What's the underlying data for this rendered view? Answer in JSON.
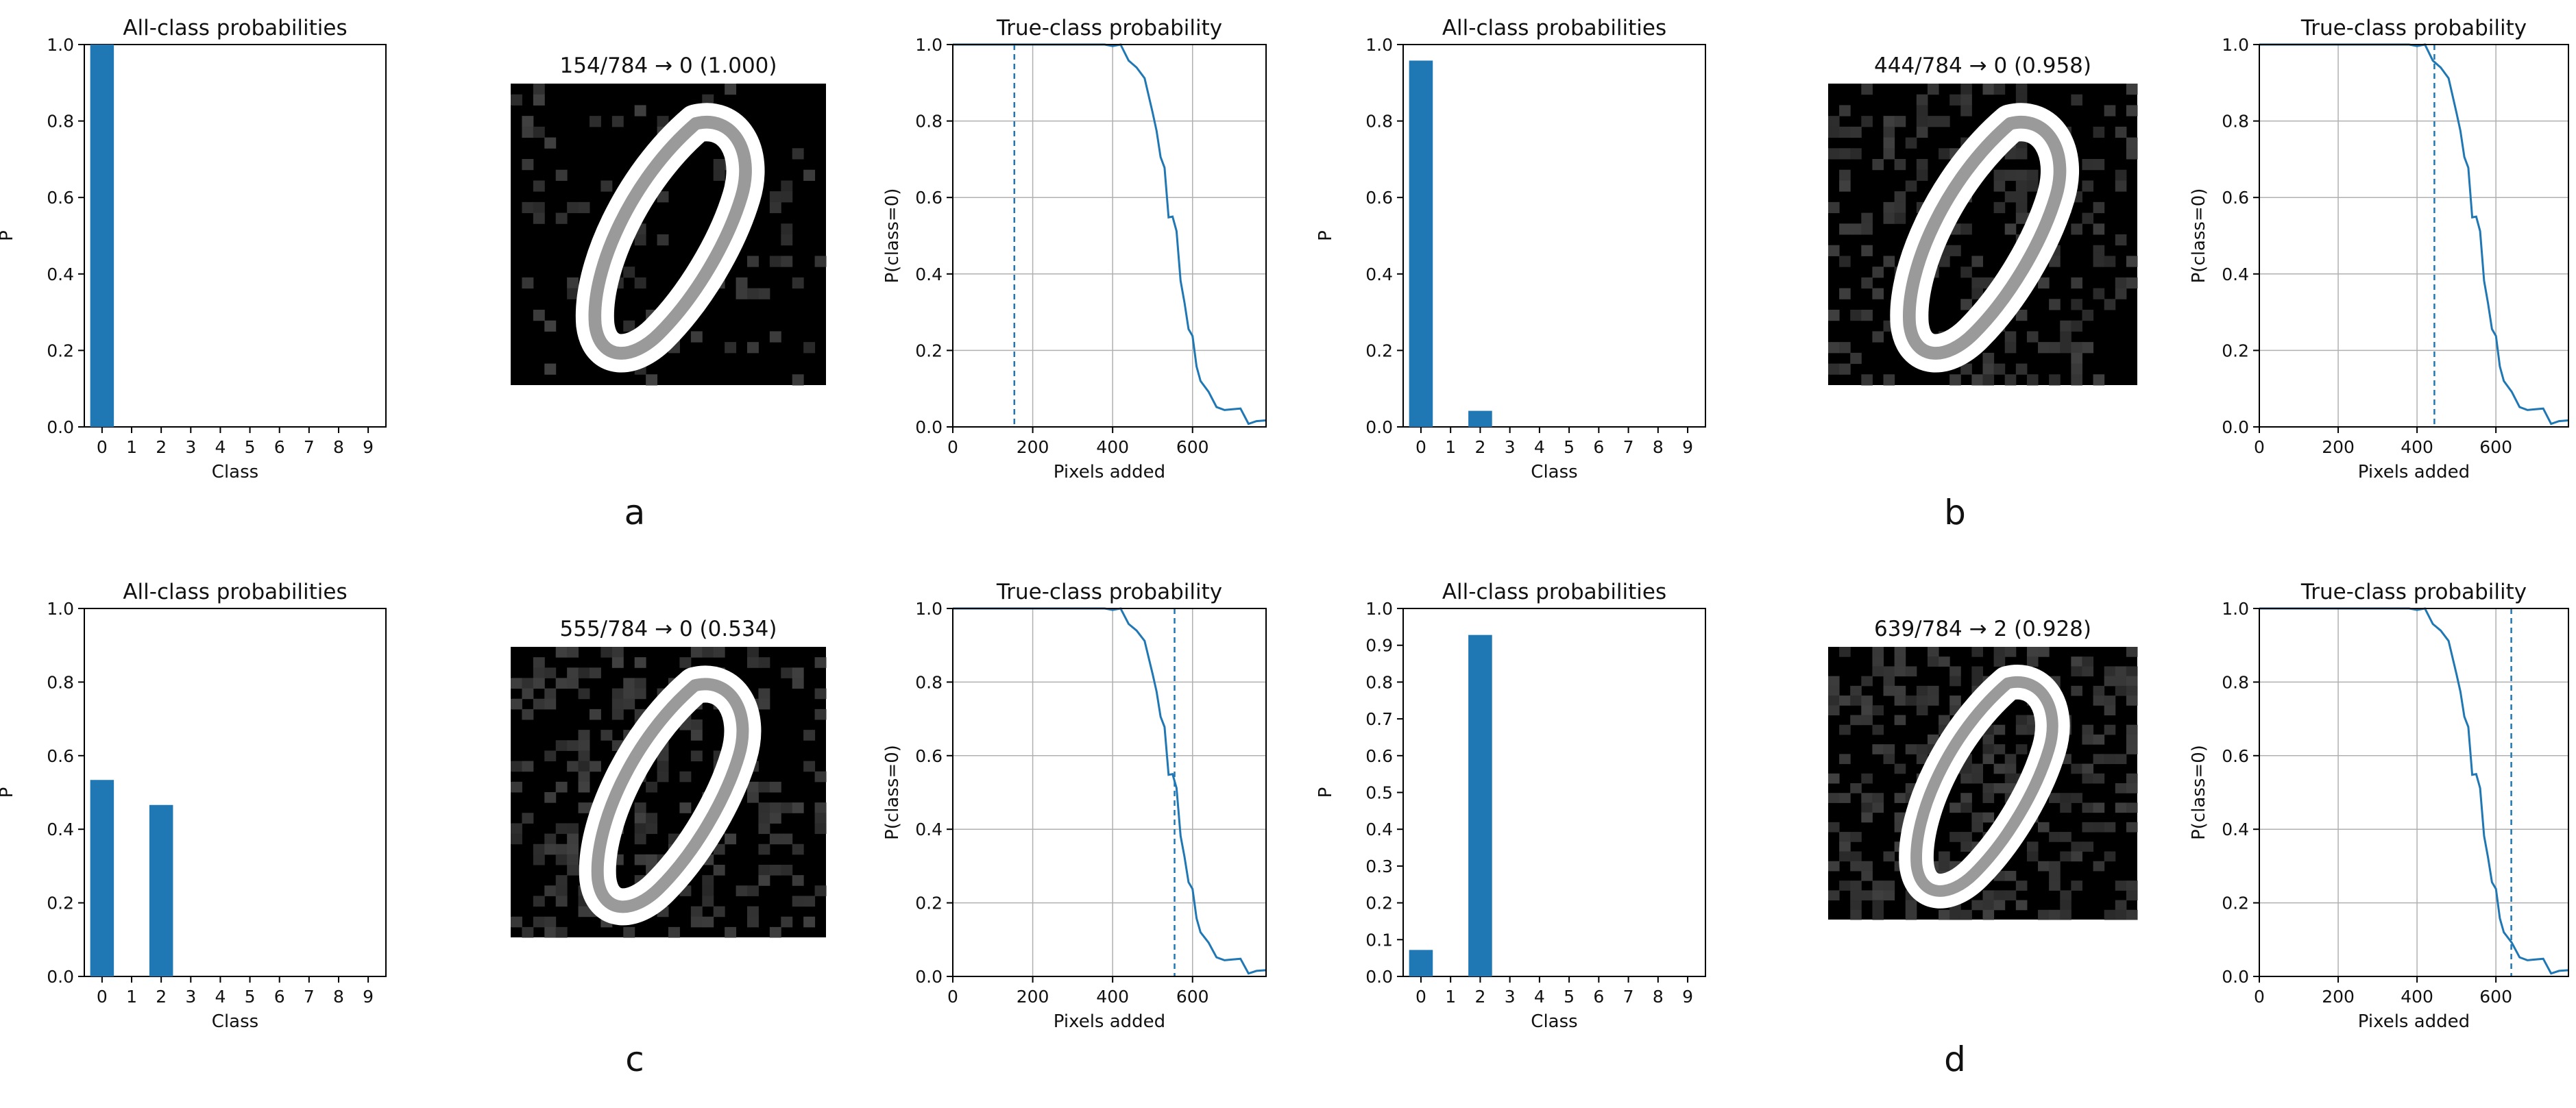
{
  "panel_letters": [
    "a",
    "b",
    "c",
    "d"
  ],
  "colors": {
    "bar": "#1f77b4",
    "line": "#1f77b4",
    "grid": "#b0b0b0",
    "axis": "#000000"
  },
  "chart_data": [
    {
      "panel": "a",
      "bars": {
        "type": "bar",
        "title": "All-class probabilities",
        "xlabel": "Class",
        "ylabel": "P",
        "categories": [
          "0",
          "1",
          "2",
          "3",
          "4",
          "5",
          "6",
          "7",
          "8",
          "9"
        ],
        "values": [
          1.0,
          0,
          0,
          0,
          0,
          0,
          0,
          0,
          0,
          0
        ],
        "ylim": [
          0,
          1
        ],
        "yticks": [
          "0.0",
          "0.2",
          "0.4",
          "0.6",
          "0.8",
          "1.0"
        ],
        "grid": false
      },
      "image": {
        "title": "154/784 → 0 (1.000)",
        "pixels_added": 154,
        "total_pixels": 784,
        "predicted_class": "0",
        "confidence": "1.000"
      },
      "curve": {
        "type": "line",
        "title": "True-class probability",
        "xlabel": "Pixels added",
        "ylabel": "P(class=0)",
        "xlim": [
          0,
          784
        ],
        "ylim": [
          0,
          1
        ],
        "xticks": [
          "0",
          "200",
          "400",
          "600"
        ],
        "yticks": [
          "0.0",
          "0.2",
          "0.4",
          "0.6",
          "0.8",
          "1.0"
        ],
        "marker_x": 154,
        "grid": true
      }
    },
    {
      "panel": "b",
      "bars": {
        "type": "bar",
        "title": "All-class probabilities",
        "xlabel": "Class",
        "ylabel": "P",
        "categories": [
          "0",
          "1",
          "2",
          "3",
          "4",
          "5",
          "6",
          "7",
          "8",
          "9"
        ],
        "values": [
          0.958,
          0,
          0.042,
          0,
          0,
          0,
          0,
          0,
          0,
          0
        ],
        "ylim": [
          0,
          1
        ],
        "yticks": [
          "0.0",
          "0.2",
          "0.4",
          "0.6",
          "0.8",
          "1.0"
        ],
        "grid": false
      },
      "image": {
        "title": "444/784 → 0 (0.958)",
        "pixels_added": 444,
        "total_pixels": 784,
        "predicted_class": "0",
        "confidence": "0.958"
      },
      "curve": {
        "type": "line",
        "title": "True-class probability",
        "xlabel": "Pixels added",
        "ylabel": "P(class=0)",
        "xlim": [
          0,
          784
        ],
        "ylim": [
          0,
          1
        ],
        "xticks": [
          "0",
          "200",
          "400",
          "600"
        ],
        "yticks": [
          "0.0",
          "0.2",
          "0.4",
          "0.6",
          "0.8",
          "1.0"
        ],
        "marker_x": 444,
        "grid": true
      }
    },
    {
      "panel": "c",
      "bars": {
        "type": "bar",
        "title": "All-class probabilities",
        "xlabel": "Class",
        "ylabel": "P",
        "categories": [
          "0",
          "1",
          "2",
          "3",
          "4",
          "5",
          "6",
          "7",
          "8",
          "9"
        ],
        "values": [
          0.534,
          0,
          0.466,
          0,
          0,
          0,
          0,
          0,
          0,
          0
        ],
        "ylim": [
          0,
          1
        ],
        "yticks": [
          "0.0",
          "0.2",
          "0.4",
          "0.6",
          "0.8",
          "1.0"
        ],
        "grid": false
      },
      "image": {
        "title": "555/784 → 0 (0.534)",
        "pixels_added": 555,
        "total_pixels": 784,
        "predicted_class": "0",
        "confidence": "0.534"
      },
      "curve": {
        "type": "line",
        "title": "True-class probability",
        "xlabel": "Pixels added",
        "ylabel": "P(class=0)",
        "xlim": [
          0,
          784
        ],
        "ylim": [
          0,
          1
        ],
        "xticks": [
          "0",
          "200",
          "400",
          "600"
        ],
        "yticks": [
          "0.0",
          "0.2",
          "0.4",
          "0.6",
          "0.8",
          "1.0"
        ],
        "marker_x": 555,
        "grid": true
      }
    },
    {
      "panel": "d",
      "bars": {
        "type": "bar",
        "title": "All-class probabilities",
        "xlabel": "Class",
        "ylabel": "P",
        "categories": [
          "0",
          "1",
          "2",
          "3",
          "4",
          "5",
          "6",
          "7",
          "8",
          "9"
        ],
        "values": [
          0.072,
          0,
          0.928,
          0,
          0,
          0,
          0,
          0,
          0,
          0
        ],
        "ylim": [
          0,
          1
        ],
        "yticks": [
          "0.0",
          "0.1",
          "0.2",
          "0.3",
          "0.4",
          "0.5",
          "0.6",
          "0.7",
          "0.8",
          "0.9",
          "1.0"
        ],
        "grid": false
      },
      "image": {
        "title": "639/784 → 2 (0.928)",
        "pixels_added": 639,
        "total_pixels": 784,
        "predicted_class": "2",
        "confidence": "0.928"
      },
      "curve": {
        "type": "line",
        "title": "True-class probability",
        "xlabel": "Pixels added",
        "ylabel": "P(class=0)",
        "xlim": [
          0,
          784
        ],
        "ylim": [
          0,
          1
        ],
        "xticks": [
          "0",
          "200",
          "400",
          "600"
        ],
        "yticks": [
          "0.0",
          "0.2",
          "0.4",
          "0.6",
          "0.8",
          "1.0"
        ],
        "marker_x": 639,
        "grid": true
      }
    }
  ],
  "true_class_curve": {
    "x": [
      0,
      50,
      100,
      150,
      200,
      250,
      300,
      350,
      380,
      400,
      420,
      440,
      460,
      480,
      500,
      510,
      520,
      530,
      540,
      550,
      560,
      570,
      580,
      590,
      600,
      610,
      620,
      640,
      660,
      680,
      700,
      720,
      740,
      760,
      784
    ],
    "y": [
      1.0,
      1.0,
      1.0,
      1.0,
      1.0,
      1.0,
      1.0,
      1.0,
      1.0,
      0.99,
      0.985,
      0.97,
      0.94,
      0.9,
      0.84,
      0.78,
      0.7,
      0.66,
      0.56,
      0.55,
      0.5,
      0.4,
      0.33,
      0.25,
      0.22,
      0.17,
      0.12,
      0.08,
      0.07,
      0.05,
      0.04,
      0.03,
      0.02,
      0.015,
      0.005
    ]
  }
}
